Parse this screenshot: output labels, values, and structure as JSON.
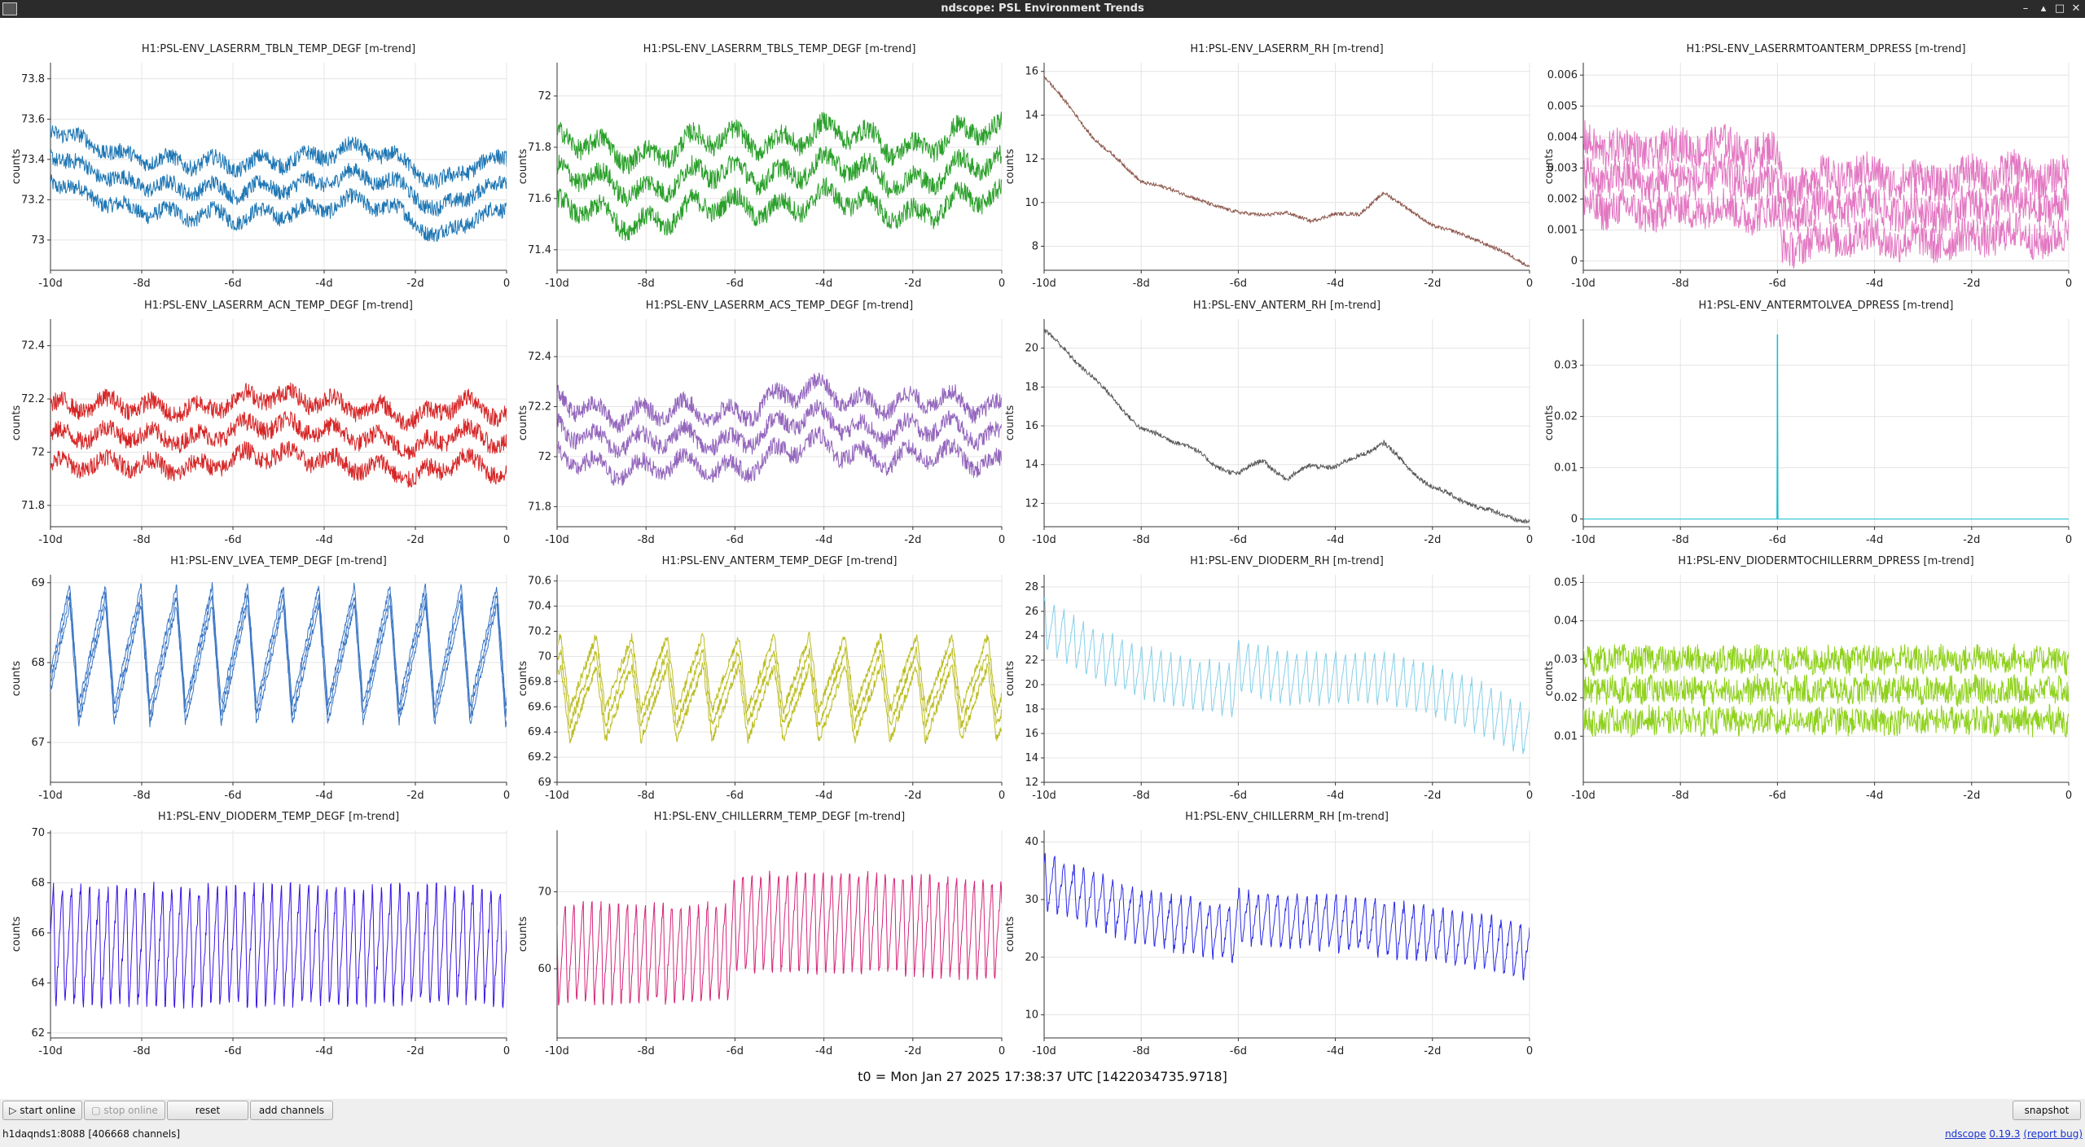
{
  "window": {
    "title": "ndscope: PSL Environment Trends",
    "buttons": {
      "minimize": "–",
      "restore": "▴",
      "maximize": "□",
      "close": "✕"
    }
  },
  "axis": {
    "ylabel": "counts",
    "x_ticks": [
      {
        "value": -10,
        "label": "-10d"
      },
      {
        "value": -8,
        "label": "-8d"
      },
      {
        "value": -6,
        "label": "-6d"
      },
      {
        "value": -4,
        "label": "-4d"
      },
      {
        "value": -2,
        "label": "-2d"
      },
      {
        "value": 0,
        "label": "0"
      }
    ]
  },
  "chart_data": [
    {
      "type": "line",
      "title": "H1:PSL-ENV_LASERRM_TBLN_TEMP_DEGF [m-trend]",
      "color": "#1f77b4",
      "xlim": [
        -10,
        0
      ],
      "ylim": [
        72.85,
        73.88
      ],
      "yticks": [
        73,
        73.2,
        73.4,
        73.6,
        73.8
      ],
      "ylabel": "counts",
      "grid": true,
      "trend": {
        "x": [
          -10,
          -9.5,
          -9,
          -8.5,
          -8,
          -7,
          -6,
          -5,
          -4,
          -3,
          -2,
          -1.5,
          -1,
          -0.5,
          0
        ],
        "y": [
          73.45,
          73.35,
          73.33,
          73.28,
          73.3,
          73.26,
          73.22,
          73.28,
          73.3,
          73.3,
          73.25,
          73.15,
          73.23,
          73.22,
          73.28
        ]
      },
      "band": 0.13,
      "noise": 0.04,
      "wavePeriod": 1,
      "waveAmp": 0.05,
      "spike": null
    },
    {
      "type": "line",
      "title": "H1:PSL-ENV_LASERRM_TBLS_TEMP_DEGF [m-trend]",
      "color": "#2ca02c",
      "xlim": [
        -10,
        0
      ],
      "ylim": [
        71.32,
        72.13
      ],
      "yticks": [
        71.4,
        71.6,
        71.8,
        72
      ],
      "ylabel": "counts",
      "grid": true,
      "trend": {
        "x": [
          -10,
          -8,
          -6,
          -4,
          -2,
          0
        ],
        "y": [
          71.68,
          71.65,
          71.7,
          71.72,
          71.68,
          71.73
        ]
      },
      "band": 0.13,
      "noise": 0.04,
      "wavePeriod": 1,
      "waveAmp": 0.06,
      "spike": null
    },
    {
      "type": "line",
      "title": "H1:PSL-ENV_LASERRM_RH [m-trend]",
      "color": "#8c564b",
      "xlim": [
        -10,
        0
      ],
      "ylim": [
        6.9,
        16.4
      ],
      "yticks": [
        8,
        10,
        12,
        14,
        16
      ],
      "ylabel": "counts",
      "grid": true,
      "trend": {
        "x": [
          -10,
          -9,
          -8,
          -7,
          -6.5,
          -6,
          -5.5,
          -5,
          -4.5,
          -4,
          -3.5,
          -3,
          -2.5,
          -2,
          -1,
          0
        ],
        "y": [
          15.8,
          13,
          11,
          10.3,
          9.8,
          9.6,
          9.4,
          9.6,
          9.1,
          9.5,
          9.4,
          10.5,
          9.7,
          9,
          8.2,
          7.1
        ]
      },
      "band": 0,
      "noise": 0.08,
      "wavePeriod": 1,
      "waveAmp": 0.06,
      "spike": null
    },
    {
      "type": "line",
      "title": "H1:PSL-ENV_LASERRMTOANTERM_DPRESS [m-trend]",
      "color": "#e377c2",
      "xlim": [
        -10,
        0
      ],
      "ylim": [
        -0.0003,
        0.0064
      ],
      "yticks": [
        0,
        0.001,
        0.002,
        0.003,
        0.004,
        0.005,
        0.006
      ],
      "ylabel": "counts",
      "grid": true,
      "trend": {
        "x": [
          -10,
          -8,
          -6,
          -5.9,
          -4,
          -2,
          0
        ],
        "y": [
          0.0028,
          0.0026,
          0.0026,
          0.0016,
          0.0017,
          0.0017,
          0.0018
        ]
      },
      "band": 0.001,
      "noise": 0.0006,
      "wavePeriod": 1,
      "waveAmp": 0.0003,
      "spike": null
    },
    {
      "type": "line",
      "title": "H1:PSL-ENV_LASERRM_ACN_TEMP_DEGF [m-trend]",
      "color": "#d62728",
      "xlim": [
        -10,
        0
      ],
      "ylim": [
        71.72,
        72.5
      ],
      "yticks": [
        71.8,
        72,
        72.2,
        72.4
      ],
      "ylabel": "counts",
      "grid": true,
      "trend": {
        "x": [
          -10,
          -8,
          -6,
          -4,
          -2,
          -1,
          0
        ],
        "y": [
          72.08,
          72.05,
          72.08,
          72.1,
          72.0,
          72.1,
          72.03
        ]
      },
      "band": 0.11,
      "noise": 0.035,
      "wavePeriod": 1,
      "waveAmp": 0.04,
      "spike": null
    },
    {
      "type": "line",
      "title": "H1:PSL-ENV_LASERRM_ACS_TEMP_DEGF [m-trend]",
      "color": "#9467bd",
      "xlim": [
        -10,
        0
      ],
      "ylim": [
        71.72,
        72.55
      ],
      "yticks": [
        71.8,
        72,
        72.2,
        72.4
      ],
      "ylabel": "counts",
      "grid": true,
      "trend": {
        "x": [
          -10,
          -8,
          -6,
          -4,
          -2,
          0
        ],
        "y": [
          72.12,
          72.05,
          72.08,
          72.15,
          72.1,
          72.1
        ]
      },
      "band": 0.11,
      "noise": 0.035,
      "wavePeriod": 1,
      "waveAmp": 0.06,
      "spike": null
    },
    {
      "type": "line",
      "title": "H1:PSL-ENV_ANTERM_RH [m-trend]",
      "color": "#555555",
      "xlim": [
        -10,
        0
      ],
      "ylim": [
        10.8,
        21.5
      ],
      "yticks": [
        12,
        14,
        16,
        18,
        20
      ],
      "ylabel": "counts",
      "grid": true,
      "trend": {
        "x": [
          -10,
          -9,
          -8,
          -7,
          -6.5,
          -6,
          -5.5,
          -5,
          -4.5,
          -4,
          -3.5,
          -3,
          -2.5,
          -2,
          -1,
          0
        ],
        "y": [
          21,
          18.5,
          15.8,
          15,
          14,
          13.5,
          14.2,
          13.2,
          14,
          13.9,
          14.5,
          15.1,
          13.8,
          12.8,
          11.8,
          11
        ]
      },
      "band": 0,
      "noise": 0.12,
      "wavePeriod": 1,
      "waveAmp": 0.1,
      "spike": null
    },
    {
      "type": "line",
      "title": "H1:PSL-ENV_ANTERMTOLVEA_DPRESS [m-trend]",
      "color": "#17becf",
      "xlim": [
        -10,
        0
      ],
      "ylim": [
        -0.0015,
        0.039
      ],
      "yticks": [
        0,
        0.01,
        0.02,
        0.03
      ],
      "ylabel": "counts",
      "grid": true,
      "trend": {
        "x": [
          -10,
          0
        ],
        "y": [
          0,
          0
        ]
      },
      "band": 0,
      "noise": 0,
      "wavePeriod": 1,
      "waveAmp": 0,
      "spike": {
        "x": -6,
        "y": 0.036
      }
    },
    {
      "type": "line",
      "title": "H1:PSL-ENV_LVEA_TEMP_DEGF [m-trend]",
      "color": "#3a75c4",
      "xlim": [
        -10,
        0
      ],
      "ylim": [
        66.5,
        69.1
      ],
      "yticks": [
        67,
        68,
        69
      ],
      "ylabel": "counts",
      "grid": true,
      "trend": {
        "x": [
          -10,
          0
        ],
        "y": [
          68.1,
          68.1
        ]
      },
      "band": 0.12,
      "noise": 0.05,
      "wavePeriod": 0.78,
      "waveAmp": 0.75,
      "sawtooth": true,
      "spike": null
    },
    {
      "type": "line",
      "title": "H1:PSL-ENV_ANTERM_TEMP_DEGF [m-trend]",
      "color": "#bcbd22",
      "xlim": [
        -10,
        0
      ],
      "ylim": [
        69,
        70.65
      ],
      "yticks": [
        69,
        69.2,
        69.4,
        69.6,
        69.8,
        70,
        70.2,
        70.4,
        70.6
      ],
      "ylabel": "counts",
      "grid": true,
      "trend": {
        "x": [
          -10,
          0
        ],
        "y": [
          69.75,
          69.75
        ]
      },
      "band": 0.12,
      "noise": 0.04,
      "wavePeriod": 0.8,
      "waveAmp": 0.3,
      "sawtooth": true,
      "spike": null
    },
    {
      "type": "line",
      "title": "H1:PSL-ENV_DIODERM_RH [m-trend]",
      "color": "#86cfe8",
      "xlim": [
        -10,
        0
      ],
      "ylim": [
        12,
        29
      ],
      "yticks": [
        12,
        14,
        16,
        18,
        20,
        22,
        24,
        26,
        28
      ],
      "ylabel": "counts",
      "grid": true,
      "trend": {
        "x": [
          -10,
          -9,
          -8,
          -7,
          -6.1,
          -6,
          -5,
          -4,
          -3,
          -2,
          -1,
          0
        ],
        "y": [
          25,
          22.5,
          21,
          20,
          19.5,
          21.5,
          20.5,
          20.5,
          20.5,
          19.5,
          18,
          16
        ]
      },
      "band": 0,
      "noise": 0.2,
      "wavePeriod": 0.2,
      "waveAmp": 2.2,
      "sawtooth": true,
      "spike": null
    },
    {
      "type": "line",
      "title": "H1:PSL-ENV_DIODERMTOCHILLERRM_DPRESS [m-trend]",
      "color": "#8fd11c",
      "xlim": [
        -10,
        0
      ],
      "ylim": [
        -0.002,
        0.052
      ],
      "yticks": [
        0.01,
        0.02,
        0.03,
        0.04,
        0.05
      ],
      "ylabel": "counts",
      "grid": true,
      "trend": {
        "x": [
          -10,
          0
        ],
        "y": [
          0.022,
          0.022
        ]
      },
      "band": 0.008,
      "noise": 0.0035,
      "wavePeriod": 0.25,
      "waveAmp": 0.001,
      "spike": null
    },
    {
      "type": "line",
      "title": "H1:PSL-ENV_DIODERM_TEMP_DEGF [m-trend]",
      "color": "#3a12e6",
      "xlim": [
        -10,
        0
      ],
      "ylim": [
        61.8,
        70.1
      ],
      "yticks": [
        62,
        64,
        66,
        68,
        70
      ],
      "ylabel": "counts",
      "grid": true,
      "trend": {
        "x": [
          -10,
          0
        ],
        "y": [
          65.5,
          65.5
        ]
      },
      "band": 0,
      "noise": 0.3,
      "wavePeriod": 0.2,
      "waveAmp": 2.5,
      "sawtooth": true,
      "spike": null
    },
    {
      "type": "line",
      "title": "H1:PSL-ENV_CHILLERRM_TEMP_DEGF [m-trend]",
      "color": "#d6247a",
      "xlim": [
        -10,
        0
      ],
      "ylim": [
        51,
        78
      ],
      "yticks": [
        60,
        70
      ],
      "ylabel": "counts",
      "grid": true,
      "trend": {
        "x": [
          -10,
          -6.1,
          -6,
          -3,
          0
        ],
        "y": [
          62,
          62,
          66,
          66,
          65
        ]
      },
      "band": 0,
      "noise": 0.6,
      "wavePeriod": 0.2,
      "waveAmp": 7,
      "sawtooth": true,
      "spike": null
    },
    {
      "type": "line",
      "title": "H1:PSL-ENV_CHILLERRM_RH [m-trend]",
      "color": "#2b2be8",
      "xlim": [
        -10,
        0
      ],
      "ylim": [
        6,
        42
      ],
      "yticks": [
        10,
        20,
        30,
        40
      ],
      "ylabel": "counts",
      "grid": true,
      "trend": {
        "x": [
          -10,
          -8,
          -6.1,
          -6,
          -4,
          -2,
          0
        ],
        "y": [
          33,
          27,
          24,
          27,
          26,
          24,
          21
        ]
      },
      "band": 0,
      "noise": 0.8,
      "wavePeriod": 0.2,
      "waveAmp": 5,
      "sawtooth": true,
      "spike": null
    }
  ],
  "footer": {
    "t0": "t0 = Mon Jan 27 2025 17:38:37 UTC [1422034735.9718]",
    "start_online": "start online",
    "stop_online": "stop online",
    "reset": "reset",
    "add_channels": "add channels",
    "snapshot": "snapshot",
    "status": "h1daqnds1:8088  [406668 channels]",
    "version_app": "ndscope",
    "version_num": "0.19.3",
    "report_bug": "(report bug)"
  }
}
